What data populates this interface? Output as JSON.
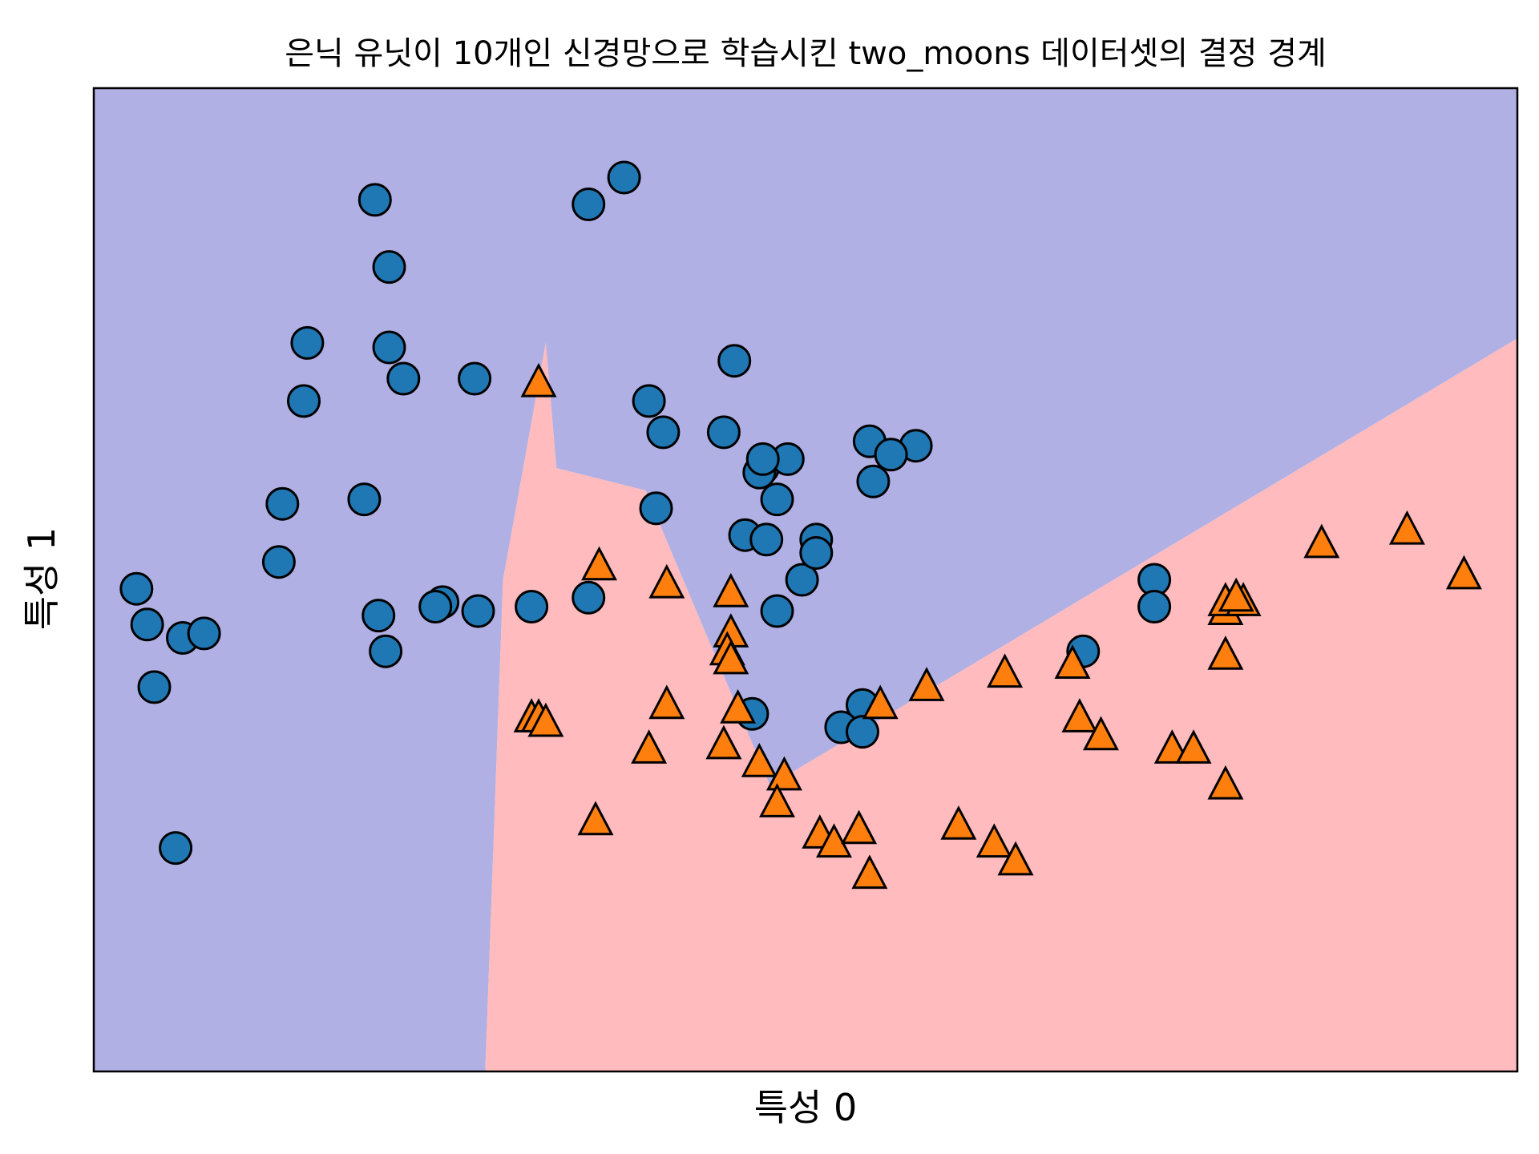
{
  "chart_data": {
    "type": "scatter",
    "title": "은닉 유닛이 10개인 신경망으로 학습시킨 two_moons 데이터셋의 결정 경계",
    "xlabel": "특성 0",
    "ylabel": "특성 1",
    "xlim": [
      -1.5,
      2.5
    ],
    "ylim": [
      -0.8,
      1.4
    ],
    "ticks_visible": false,
    "grid": false,
    "decision_regions": [
      {
        "class": 0,
        "color": "#b0b0e4",
        "polygon": [
          [
            -1.5,
            -0.8
          ],
          [
            -0.4,
            -0.8
          ],
          [
            -0.35,
            0.3
          ],
          [
            -0.23,
            0.83
          ],
          [
            -0.2,
            0.55
          ],
          [
            0.05,
            0.5
          ],
          [
            0.4,
            -0.16
          ],
          [
            2.5,
            0.84
          ],
          [
            2.5,
            1.4
          ],
          [
            -1.5,
            1.4
          ]
        ]
      },
      {
        "class": 1,
        "color": "#ffbbbd",
        "polygon": [
          [
            -0.4,
            -0.8
          ],
          [
            2.5,
            -0.8
          ],
          [
            2.5,
            0.84
          ],
          [
            0.4,
            -0.16
          ],
          [
            0.05,
            0.5
          ],
          [
            -0.2,
            0.55
          ],
          [
            -0.23,
            0.83
          ],
          [
            -0.35,
            0.3
          ]
        ]
      }
    ],
    "series": [
      {
        "class": 0,
        "marker": "circle",
        "color": "#1f77b4",
        "points": [
          [
            -0.71,
            1.15
          ],
          [
            -0.11,
            1.14
          ],
          [
            -0.01,
            1.2
          ],
          [
            -0.67,
            1.0
          ],
          [
            -0.9,
            0.83
          ],
          [
            -0.67,
            0.82
          ],
          [
            -0.43,
            0.75
          ],
          [
            -0.63,
            0.75
          ],
          [
            0.1,
            0.63
          ],
          [
            0.06,
            0.7
          ],
          [
            0.27,
            0.63
          ],
          [
            0.68,
            0.61
          ],
          [
            0.3,
            0.79
          ],
          [
            0.38,
            0.55
          ],
          [
            0.45,
            0.57
          ],
          [
            0.81,
            0.6
          ],
          [
            0.33,
            0.4
          ],
          [
            -0.74,
            0.48
          ],
          [
            -0.91,
            0.7
          ],
          [
            0.08,
            0.46
          ],
          [
            0.37,
            0.54
          ],
          [
            0.39,
            0.39
          ],
          [
            0.38,
            0.57
          ],
          [
            0.74,
            0.58
          ],
          [
            0.49,
            0.3
          ],
          [
            0.42,
            0.23
          ],
          [
            0.53,
            0.39
          ],
          [
            0.53,
            0.36
          ],
          [
            -0.11,
            0.26
          ],
          [
            -0.27,
            0.24
          ],
          [
            -0.42,
            0.23
          ],
          [
            -0.52,
            0.25
          ],
          [
            -0.54,
            0.24
          ],
          [
            -0.7,
            0.22
          ],
          [
            -0.68,
            0.14
          ],
          [
            -0.98,
            0.34
          ],
          [
            -1.25,
            0.17
          ],
          [
            -1.35,
            0.2
          ],
          [
            -1.38,
            0.28
          ],
          [
            -1.19,
            0.18
          ],
          [
            -0.97,
            0.47
          ],
          [
            -1.33,
            0.06
          ],
          [
            -1.27,
            -0.3
          ],
          [
            0.35,
            0.0
          ],
          [
            0.66,
            0.02
          ],
          [
            0.6,
            -0.03
          ],
          [
            0.66,
            -0.04
          ],
          [
            1.28,
            0.14
          ],
          [
            1.48,
            0.3
          ],
          [
            1.48,
            0.24
          ],
          [
            0.42,
            0.48
          ],
          [
            0.69,
            0.52
          ]
        ]
      },
      {
        "class": 1,
        "marker": "triangle",
        "color": "#ff7f0e",
        "points": [
          [
            -0.25,
            0.74
          ],
          [
            -0.08,
            0.33
          ],
          [
            0.11,
            0.29
          ],
          [
            0.29,
            0.27
          ],
          [
            0.29,
            0.18
          ],
          [
            0.28,
            0.14
          ],
          [
            0.29,
            0.12
          ],
          [
            0.11,
            0.02
          ],
          [
            0.31,
            0.01
          ],
          [
            -0.27,
            -0.01
          ],
          [
            -0.25,
            -0.01
          ],
          [
            -0.23,
            -0.02
          ],
          [
            0.06,
            -0.08
          ],
          [
            0.27,
            -0.07
          ],
          [
            0.37,
            -0.11
          ],
          [
            0.44,
            -0.14
          ],
          [
            -0.09,
            -0.24
          ],
          [
            0.42,
            -0.2
          ],
          [
            0.54,
            -0.27
          ],
          [
            0.58,
            -0.29
          ],
          [
            0.65,
            -0.26
          ],
          [
            0.93,
            -0.25
          ],
          [
            1.03,
            -0.29
          ],
          [
            1.09,
            -0.33
          ],
          [
            0.68,
            -0.36
          ],
          [
            0.84,
            0.06
          ],
          [
            1.06,
            0.09
          ],
          [
            1.25,
            0.11
          ],
          [
            1.27,
            -0.01
          ],
          [
            1.33,
            -0.05
          ],
          [
            1.53,
            -0.08
          ],
          [
            1.59,
            -0.08
          ],
          [
            1.68,
            -0.16
          ],
          [
            0.71,
            0.02
          ],
          [
            1.68,
            0.23
          ],
          [
            1.68,
            0.25
          ],
          [
            1.73,
            0.25
          ],
          [
            1.71,
            0.26
          ],
          [
            1.95,
            0.38
          ],
          [
            2.19,
            0.41
          ],
          [
            2.35,
            0.31
          ],
          [
            1.68,
            0.13
          ]
        ]
      }
    ]
  }
}
